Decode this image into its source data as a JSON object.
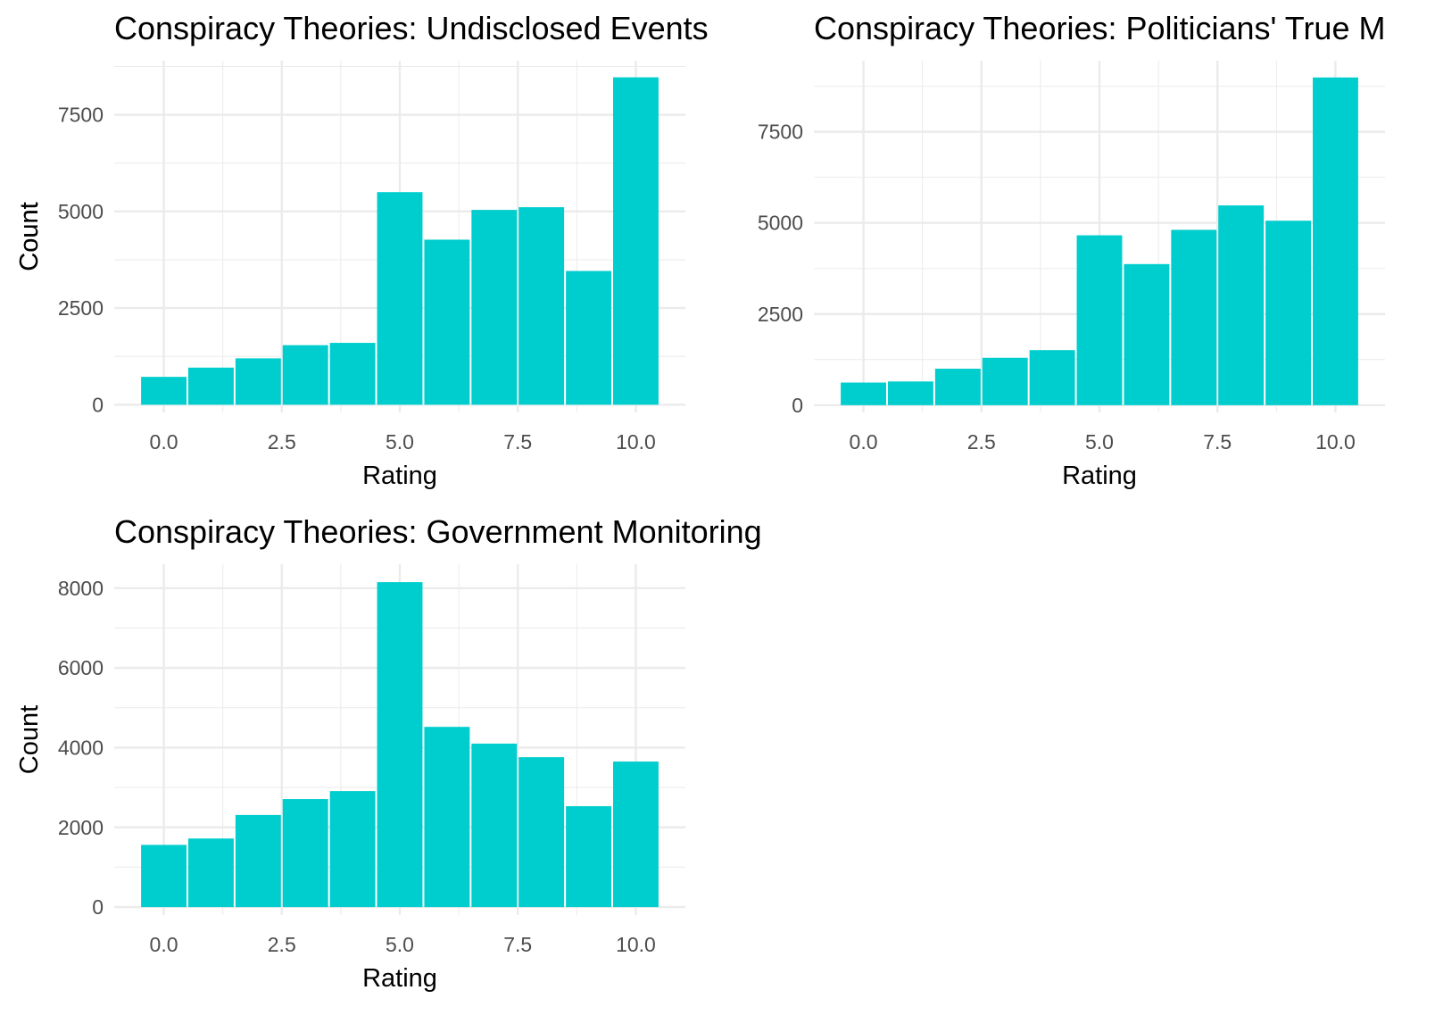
{
  "chart_data": [
    {
      "type": "bar",
      "title": "Conspiracy Theories: Undisclosed Events",
      "xlabel": "Rating",
      "ylabel": "Count",
      "x": [
        0,
        1,
        2,
        3,
        4,
        5,
        6,
        7,
        8,
        9,
        10
      ],
      "values": [
        720,
        960,
        1200,
        1540,
        1600,
        5500,
        4270,
        5040,
        5110,
        3460,
        8470
      ],
      "xticks": [
        0,
        2.5,
        5,
        7.5,
        10
      ],
      "xtick_labels": [
        "0.0",
        "2.5",
        "5.0",
        "7.5",
        "10.0"
      ],
      "yticks": [
        0,
        2500,
        5000,
        7500
      ],
      "ytick_labels": [
        "0",
        "2500",
        "5000",
        "7500"
      ],
      "xlim": [
        -1.05,
        11.05
      ],
      "ylim": [
        -200,
        8900
      ],
      "grid": true,
      "bar_color": "#00CDCD",
      "grid_color": "#EBEBEB"
    },
    {
      "type": "bar",
      "title": "Conspiracy Theories: Politicians' True M",
      "xlabel": "Rating",
      "ylabel": "Count",
      "x": [
        0,
        1,
        2,
        3,
        4,
        5,
        6,
        7,
        8,
        9,
        10
      ],
      "values": [
        620,
        650,
        1000,
        1300,
        1510,
        4660,
        3870,
        4810,
        5480,
        5060,
        8990
      ],
      "xticks": [
        0,
        2.5,
        5,
        7.5,
        10
      ],
      "xtick_labels": [
        "0.0",
        "2.5",
        "5.0",
        "7.5",
        "10.0"
      ],
      "yticks": [
        0,
        2500,
        5000,
        7500
      ],
      "ytick_labels": [
        "0",
        "2500",
        "5000",
        "7500"
      ],
      "xlim": [
        -1.05,
        11.05
      ],
      "ylim": [
        -200,
        9450
      ],
      "grid": true,
      "bar_color": "#00CDCD",
      "grid_color": "#EBEBEB"
    },
    {
      "type": "bar",
      "title": "Conspiracy Theories: Government Monitoring",
      "xlabel": "Rating",
      "ylabel": "Count",
      "x": [
        0,
        1,
        2,
        3,
        4,
        5,
        6,
        7,
        8,
        9,
        10
      ],
      "values": [
        1560,
        1720,
        2310,
        2710,
        2910,
        8150,
        4520,
        4100,
        3760,
        2530,
        3650
      ],
      "xticks": [
        0,
        2.5,
        5,
        7.5,
        10
      ],
      "xtick_labels": [
        "0.0",
        "2.5",
        "5.0",
        "7.5",
        "10.0"
      ],
      "yticks": [
        0,
        2000,
        4000,
        6000,
        8000
      ],
      "ytick_labels": [
        "0",
        "2000",
        "4000",
        "6000",
        "8000"
      ],
      "xlim": [
        -1.05,
        11.05
      ],
      "ylim": [
        -200,
        8600
      ],
      "grid": true,
      "bar_color": "#00CDCD",
      "grid_color": "#EBEBEB"
    }
  ]
}
